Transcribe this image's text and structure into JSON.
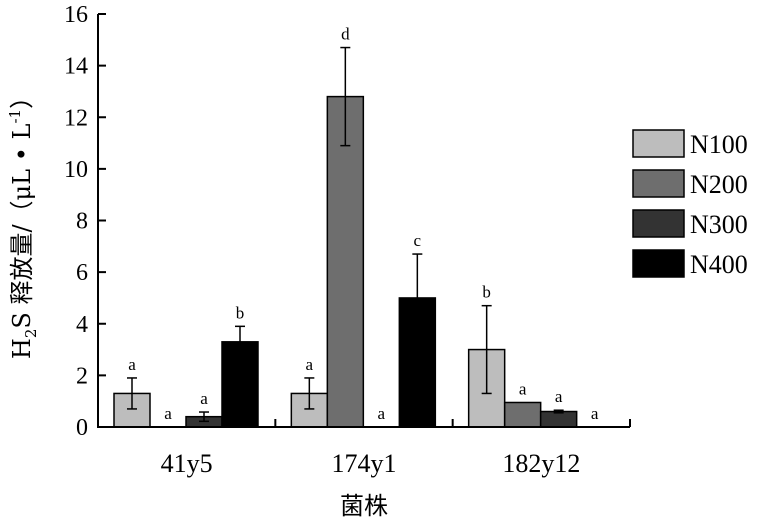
{
  "chart_data": {
    "type": "bar",
    "categories": [
      "41y5",
      "174y1",
      "182y12"
    ],
    "series": [
      {
        "name": "N100",
        "color": "#bdbdbd",
        "values": [
          1.3,
          1.3,
          3.0
        ],
        "errors": [
          0.6,
          0.6,
          1.7
        ],
        "letters": [
          "a",
          "a",
          "b"
        ]
      },
      {
        "name": "N200",
        "color": "#6e6e6e",
        "values": [
          0,
          12.8,
          0.95
        ],
        "errors": [
          0,
          1.9,
          0
        ],
        "letters": [
          "a",
          "d",
          "a"
        ]
      },
      {
        "name": "N300",
        "color": "#333333",
        "values": [
          0.4,
          0,
          0.6
        ],
        "errors": [
          0.18,
          0,
          0.05
        ],
        "letters": [
          "a",
          "a",
          "a"
        ]
      },
      {
        "name": "N400",
        "color": "#000000",
        "values": [
          3.3,
          5.0,
          0
        ],
        "errors": [
          0.6,
          1.7,
          0
        ],
        "letters": [
          "b",
          "c",
          "a"
        ]
      }
    ],
    "xlabel": "菌株",
    "ylabel_parts": {
      "main": "H",
      "sub": "2",
      "rest": "S 释放量/（μL • L",
      "sup": "-1",
      "close": "）"
    },
    "yticks": [
      "0",
      "2",
      "4",
      "6",
      "8",
      "10",
      "12",
      "14",
      "16"
    ],
    "ylim": [
      0,
      16
    ],
    "grid": false,
    "legend_position": "right"
  }
}
